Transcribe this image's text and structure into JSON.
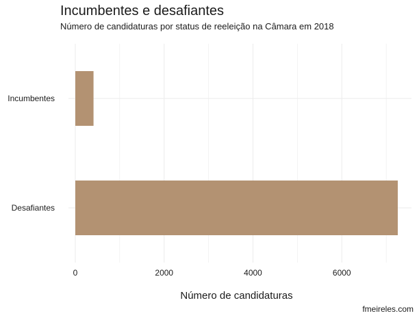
{
  "chart_data": {
    "type": "bar",
    "orientation": "horizontal",
    "title": "Incumbentes e desafiantes",
    "subtitle": "Número de candidaturas por status de reeleição na Câmara em 2018",
    "xlabel": "Número de candidaturas",
    "ylabel": "",
    "caption": "fmeireles.com",
    "categories": [
      "Incumbentes",
      "Desafiantes"
    ],
    "values": [
      410,
      7260
    ],
    "xlim": [
      0,
      7260
    ],
    "xticks": [
      0,
      2000,
      4000,
      6000
    ],
    "grid": true,
    "legend": "none",
    "bar_color": "#b39272",
    "grid_color": "#ebebeb"
  }
}
